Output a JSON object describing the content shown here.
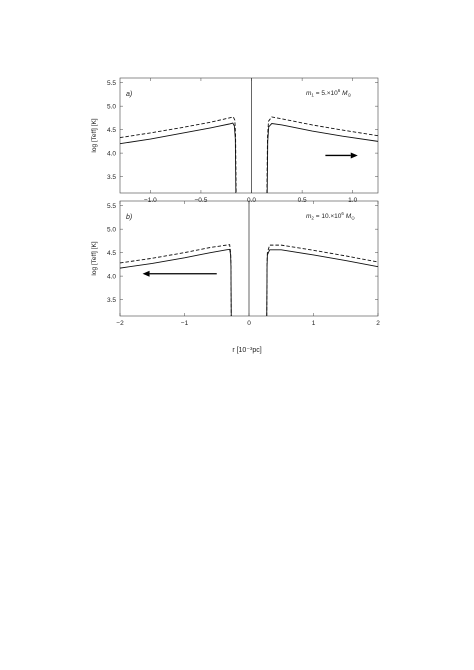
{
  "chart_data": [
    {
      "type": "line",
      "panel_label": "a)",
      "mass_label": {
        "prefix": "m",
        "sub": "1",
        "text": " = 5.×10",
        "exp": "6",
        "unit": " M",
        "unit_sub": "⊙"
      },
      "ylabel": "log [Teff] [K]",
      "xlim": [
        -1.3,
        1.25
      ],
      "ylim": [
        3.15,
        5.6
      ],
      "xticks": [
        -1.0,
        -0.5,
        0.0,
        0.5,
        1.0
      ],
      "xtick_labels": [
        "−1.0",
        "−0.5",
        "0.0",
        "0.5",
        "1.0"
      ],
      "yticks": [
        3.5,
        4.0,
        4.5,
        5.0,
        5.5
      ],
      "ytick_labels": [
        "3.5",
        "4.0",
        "4.5",
        "5.0",
        "5.5"
      ],
      "arrow": {
        "direction": "right",
        "from": [
          0.73,
          3.95
        ],
        "to": [
          1.05,
          3.95
        ]
      },
      "series": [
        {
          "style": "solid",
          "left": [
            [
              -1.3,
              4.2
            ],
            [
              -1.0,
              4.3
            ],
            [
              -0.7,
              4.42
            ],
            [
              -0.4,
              4.54
            ],
            [
              -0.22,
              4.62
            ],
            [
              -0.185,
              4.64
            ],
            [
              -0.17,
              4.58
            ],
            [
              -0.16,
              4.3
            ],
            [
              -0.155,
              3.15
            ]
          ],
          "right": [
            [
              0.155,
              3.15
            ],
            [
              0.16,
              4.25
            ],
            [
              0.17,
              4.56
            ],
            [
              0.2,
              4.63
            ],
            [
              0.3,
              4.6
            ],
            [
              0.6,
              4.47
            ],
            [
              0.9,
              4.36
            ],
            [
              1.25,
              4.25
            ]
          ]
        },
        {
          "style": "dashed",
          "left": [
            [
              -1.3,
              4.33
            ],
            [
              -1.0,
              4.43
            ],
            [
              -0.7,
              4.54
            ],
            [
              -0.4,
              4.66
            ],
            [
              -0.22,
              4.75
            ],
            [
              -0.18,
              4.77
            ],
            [
              -0.165,
              4.7
            ],
            [
              -0.158,
              4.4
            ],
            [
              -0.152,
              3.15
            ]
          ],
          "right": [
            [
              0.152,
              3.15
            ],
            [
              0.158,
              4.35
            ],
            [
              0.168,
              4.68
            ],
            [
              0.2,
              4.77
            ],
            [
              0.3,
              4.73
            ],
            [
              0.6,
              4.6
            ],
            [
              0.9,
              4.49
            ],
            [
              1.25,
              4.37
            ]
          ]
        }
      ]
    },
    {
      "type": "line",
      "panel_label": "b)",
      "mass_label": {
        "prefix": "m",
        "sub": "2",
        "text": " = 10.×10",
        "exp": "6",
        "unit": " M",
        "unit_sub": "⊙"
      },
      "ylabel": "log [Teff] [K]",
      "xlabel": "r [10⁻³pc]",
      "xlim": [
        -2.0,
        2.0
      ],
      "ylim": [
        3.15,
        5.6
      ],
      "xticks": [
        -2,
        -1,
        0,
        1,
        2
      ],
      "xtick_labels": [
        "−2",
        "−1",
        "0",
        "1",
        "2"
      ],
      "yticks": [
        3.5,
        4.0,
        4.5,
        5.0,
        5.5
      ],
      "ytick_labels": [
        "3.5",
        "4.0",
        "4.5",
        "5.0",
        "5.5"
      ],
      "arrow": {
        "direction": "left",
        "from": [
          -0.5,
          4.05
        ],
        "to": [
          -1.65,
          4.05
        ]
      },
      "series": [
        {
          "style": "solid",
          "left": [
            [
              -2.0,
              4.17
            ],
            [
              -1.5,
              4.27
            ],
            [
              -1.0,
              4.39
            ],
            [
              -0.6,
              4.5
            ],
            [
              -0.35,
              4.56
            ],
            [
              -0.3,
              4.57
            ],
            [
              -0.285,
              4.45
            ],
            [
              -0.28,
              4.2
            ],
            [
              -0.275,
              3.15
            ]
          ],
          "right": [
            [
              0.275,
              3.15
            ],
            [
              0.28,
              4.2
            ],
            [
              0.285,
              4.45
            ],
            [
              0.32,
              4.56
            ],
            [
              0.5,
              4.56
            ],
            [
              1.0,
              4.45
            ],
            [
              1.5,
              4.33
            ],
            [
              2.0,
              4.2
            ]
          ]
        },
        {
          "style": "dashed",
          "left": [
            [
              -2.0,
              4.28
            ],
            [
              -1.5,
              4.38
            ],
            [
              -1.0,
              4.5
            ],
            [
              -0.6,
              4.61
            ],
            [
              -0.35,
              4.66
            ],
            [
              -0.3,
              4.67
            ],
            [
              -0.285,
              4.5
            ],
            [
              -0.28,
              4.25
            ],
            [
              -0.275,
              3.15
            ]
          ],
          "right": [
            [
              0.275,
              3.15
            ],
            [
              0.28,
              4.25
            ],
            [
              0.285,
              4.5
            ],
            [
              0.32,
              4.66
            ],
            [
              0.5,
              4.66
            ],
            [
              1.0,
              4.55
            ],
            [
              1.5,
              4.43
            ],
            [
              2.0,
              4.3
            ]
          ]
        }
      ]
    }
  ]
}
